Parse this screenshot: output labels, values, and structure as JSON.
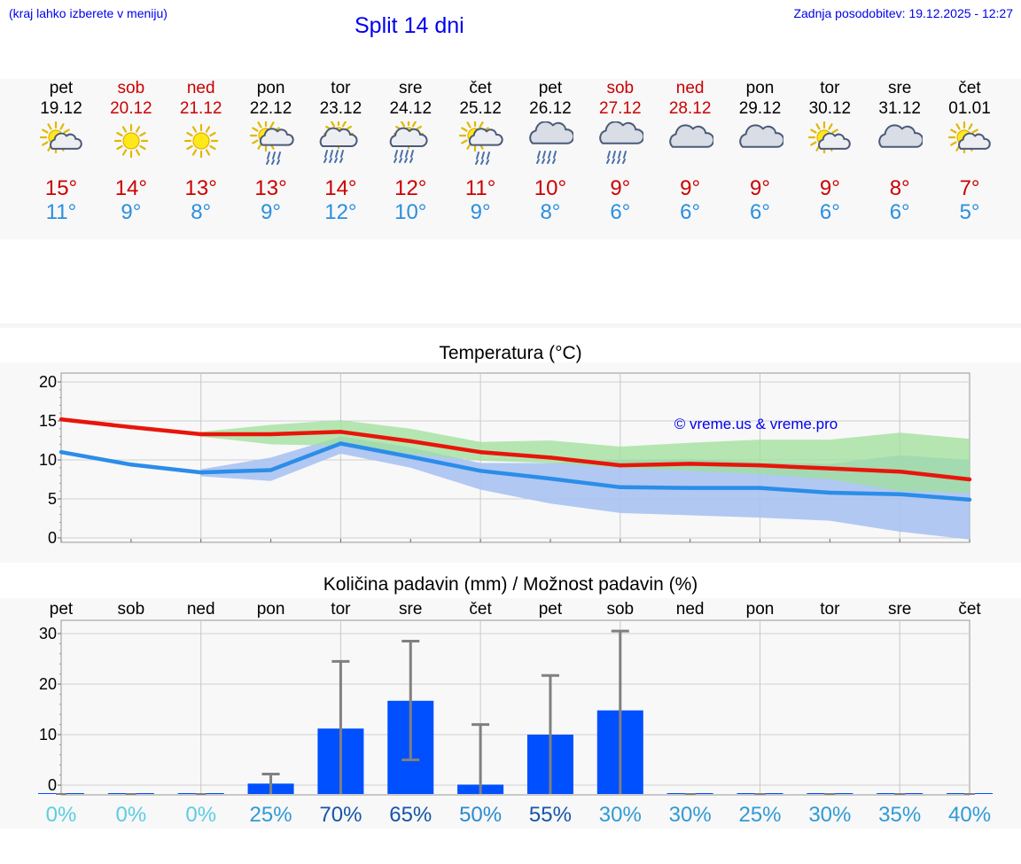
{
  "header": {
    "hint": "(kraj lahko izberete v meniju)",
    "title": "Split 14 dni",
    "updated": "Zadnja posodobitev: 19.12.2025 - 12:27"
  },
  "days": [
    {
      "name": "pet",
      "date": "19.12",
      "weekend": false,
      "icon": "sun-cloud-icon",
      "max": "15°",
      "min": "11°"
    },
    {
      "name": "sob",
      "date": "20.12",
      "weekend": true,
      "icon": "sun-icon",
      "max": "14°",
      "min": "9°"
    },
    {
      "name": "ned",
      "date": "21.12",
      "weekend": true,
      "icon": "sun-icon",
      "max": "13°",
      "min": "8°"
    },
    {
      "name": "pon",
      "date": "22.12",
      "weekend": false,
      "icon": "sun-cloud-rain-icon",
      "max": "13°",
      "min": "9°"
    },
    {
      "name": "tor",
      "date": "23.12",
      "weekend": false,
      "icon": "sun-cloud-heavy-rain-icon",
      "max": "14°",
      "min": "12°"
    },
    {
      "name": "sre",
      "date": "24.12",
      "weekend": false,
      "icon": "sun-cloud-heavy-rain-icon",
      "max": "12°",
      "min": "10°"
    },
    {
      "name": "čet",
      "date": "25.12",
      "weekend": false,
      "icon": "sun-cloud-rain-icon",
      "max": "11°",
      "min": "9°"
    },
    {
      "name": "pet",
      "date": "26.12",
      "weekend": false,
      "icon": "cloud-rain-icon",
      "max": "10°",
      "min": "8°"
    },
    {
      "name": "sob",
      "date": "27.12",
      "weekend": true,
      "icon": "cloud-rain-icon",
      "max": "9°",
      "min": "6°"
    },
    {
      "name": "ned",
      "date": "28.12",
      "weekend": true,
      "icon": "cloud-icon",
      "max": "9°",
      "min": "6°"
    },
    {
      "name": "pon",
      "date": "29.12",
      "weekend": false,
      "icon": "cloud-icon",
      "max": "9°",
      "min": "6°"
    },
    {
      "name": "tor",
      "date": "30.12",
      "weekend": false,
      "icon": "sun-cloud-icon",
      "max": "9°",
      "min": "6°"
    },
    {
      "name": "sre",
      "date": "31.12",
      "weekend": false,
      "icon": "cloud-icon",
      "max": "8°",
      "min": "6°"
    },
    {
      "name": "čet",
      "date": "01.01",
      "weekend": false,
      "icon": "sun-cloud-icon",
      "max": "7°",
      "min": "5°"
    }
  ],
  "colors": {
    "max_line": "#e8150a",
    "min_line": "#2b8de8",
    "max_band": "#9fe09a",
    "min_band": "#a9c2f2",
    "overlap_band": "#7cc9a4",
    "bar": "#0050ff",
    "whisker": "#808080",
    "weekend_text": "#cc0000",
    "link": "#0000ee"
  },
  "chart_data": [
    {
      "type": "line",
      "title": "Temperatura (°C)",
      "watermark": "© vreme.us & vreme.pro",
      "x": [
        "pet",
        "sob",
        "ned",
        "pon",
        "tor",
        "sre",
        "čet",
        "pet",
        "sob",
        "ned",
        "pon",
        "tor",
        "sre",
        "čet"
      ],
      "ylim": [
        0,
        20
      ],
      "yticks": [
        0,
        5,
        10,
        15,
        20
      ],
      "grid": true,
      "series": [
        {
          "name": "max",
          "values": [
            15.2,
            14.2,
            13.3,
            13.3,
            13.6,
            12.4,
            11.0,
            10.3,
            9.3,
            9.5,
            9.3,
            8.9,
            8.5,
            7.5
          ]
        },
        {
          "name": "min",
          "values": [
            11.0,
            9.4,
            8.4,
            8.7,
            12.1,
            10.4,
            8.6,
            7.6,
            6.5,
            6.4,
            6.4,
            5.8,
            5.6,
            4.9
          ]
        },
        {
          "name": "max_range",
          "low": [
            null,
            null,
            13.0,
            12.0,
            11.8,
            10.8,
            9.9,
            9.6,
            9.0,
            8.6,
            8.2,
            7.5,
            6.0,
            5.8
          ],
          "high": [
            null,
            null,
            13.6,
            14.5,
            15.1,
            14.0,
            12.3,
            12.5,
            11.7,
            12.2,
            12.6,
            12.6,
            13.5,
            12.7
          ]
        },
        {
          "name": "min_range",
          "low": [
            null,
            null,
            7.9,
            7.3,
            10.8,
            9.0,
            6.2,
            4.4,
            3.2,
            2.9,
            2.6,
            2.2,
            0.8,
            -0.2
          ],
          "high": [
            null,
            null,
            8.8,
            10.3,
            13.0,
            11.6,
            9.6,
            9.6,
            10.0,
            10.1,
            9.7,
            9.5,
            10.6,
            10.0
          ]
        }
      ]
    },
    {
      "type": "bar",
      "title": "Količina padavin (mm) / Možnost padavin (%)",
      "categories": [
        "pet",
        "sob",
        "ned",
        "pon",
        "tor",
        "sre",
        "čet",
        "pet",
        "sob",
        "ned",
        "pon",
        "tor",
        "sre",
        "čet"
      ],
      "values": [
        0,
        0,
        0,
        0.3,
        11.2,
        16.7,
        0.1,
        10.0,
        14.8,
        0,
        0,
        0,
        0,
        0
      ],
      "error_low": [
        0,
        0,
        0,
        0,
        0,
        5.0,
        0,
        0,
        0,
        0,
        0,
        0,
        0,
        0
      ],
      "error_high": [
        0,
        0,
        0,
        2.2,
        24.5,
        28.5,
        12.0,
        21.7,
        30.5,
        0,
        0,
        0,
        0,
        0
      ],
      "probability": [
        "0%",
        "0%",
        "0%",
        "25%",
        "70%",
        "65%",
        "50%",
        "55%",
        "30%",
        "30%",
        "25%",
        "30%",
        "35%",
        "40%"
      ],
      "probability_values": [
        0,
        0,
        0,
        25,
        70,
        65,
        50,
        55,
        30,
        30,
        25,
        30,
        35,
        40
      ],
      "ylim": [
        0,
        32
      ],
      "yticks": [
        0,
        10,
        20,
        30
      ],
      "grid": true
    }
  ]
}
